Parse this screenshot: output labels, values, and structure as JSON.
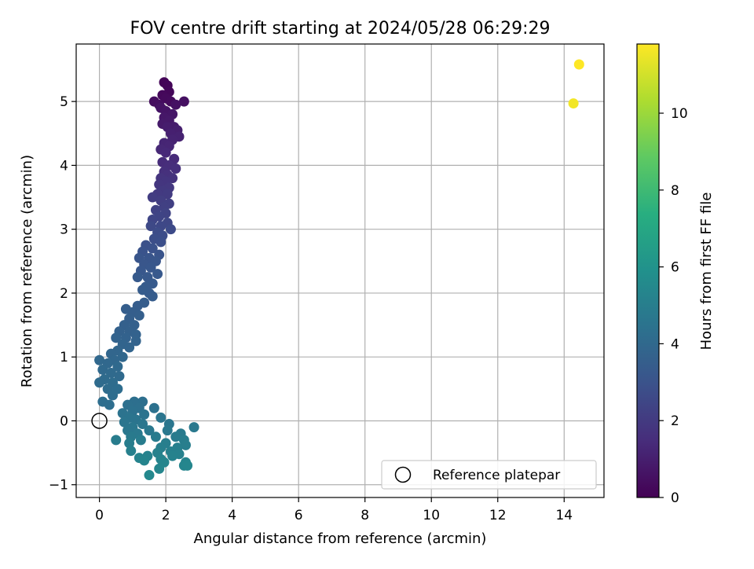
{
  "chart_data": {
    "type": "scatter",
    "title": "FOV centre drift starting at 2024/05/28 06:29:29",
    "xlabel": "Angular distance from reference (arcmin)",
    "ylabel": "Rotation from reference (arcmin)",
    "xlim": [
      -0.7,
      15.2
    ],
    "ylim": [
      -1.2,
      5.9
    ],
    "x_ticks": [
      "0",
      "2",
      "4",
      "6",
      "8",
      "10",
      "12",
      "14"
    ],
    "y_ticks": [
      "−1",
      "0",
      "1",
      "2",
      "3",
      "4",
      "5"
    ],
    "grid": true,
    "legend_position": "lower-right",
    "legend_label": "Reference platepar",
    "colorbar": {
      "label": "Hours from first FF file",
      "colormap": "viridis",
      "range": [
        0,
        11.8
      ],
      "ticks": [
        "0",
        "2",
        "4",
        "6",
        "8",
        "10"
      ]
    },
    "reference_point": {
      "x": 0,
      "y": 0
    },
    "points": [
      {
        "x": 1.95,
        "y": 5.3,
        "h": 0.1
      },
      {
        "x": 2.05,
        "y": 5.25,
        "h": 0.15
      },
      {
        "x": 2.1,
        "y": 5.15,
        "h": 0.2
      },
      {
        "x": 1.9,
        "y": 5.1,
        "h": 0.25
      },
      {
        "x": 2.0,
        "y": 5.05,
        "h": 0.3
      },
      {
        "x": 2.15,
        "y": 5.0,
        "h": 0.35
      },
      {
        "x": 1.65,
        "y": 5.0,
        "h": 0.4
      },
      {
        "x": 1.8,
        "y": 4.95,
        "h": 0.45
      },
      {
        "x": 2.55,
        "y": 5.0,
        "h": 0.5
      },
      {
        "x": 2.3,
        "y": 4.95,
        "h": 0.55
      },
      {
        "x": 1.85,
        "y": 4.9,
        "h": 0.6
      },
      {
        "x": 2.0,
        "y": 4.85,
        "h": 0.65
      },
      {
        "x": 2.2,
        "y": 4.8,
        "h": 0.7
      },
      {
        "x": 1.95,
        "y": 4.75,
        "h": 0.75
      },
      {
        "x": 2.1,
        "y": 4.7,
        "h": 0.8
      },
      {
        "x": 1.9,
        "y": 4.65,
        "h": 0.85
      },
      {
        "x": 2.25,
        "y": 4.6,
        "h": 0.9
      },
      {
        "x": 2.05,
        "y": 4.6,
        "h": 0.95
      },
      {
        "x": 2.35,
        "y": 4.55,
        "h": 1.0
      },
      {
        "x": 2.15,
        "y": 4.5,
        "h": 1.05
      },
      {
        "x": 2.4,
        "y": 4.45,
        "h": 1.1
      },
      {
        "x": 2.2,
        "y": 4.4,
        "h": 1.15
      },
      {
        "x": 1.95,
        "y": 4.35,
        "h": 1.2
      },
      {
        "x": 2.1,
        "y": 4.3,
        "h": 1.25
      },
      {
        "x": 1.85,
        "y": 4.25,
        "h": 1.3
      },
      {
        "x": 2.0,
        "y": 4.2,
        "h": 1.35
      },
      {
        "x": 2.25,
        "y": 4.1,
        "h": 1.4
      },
      {
        "x": 1.9,
        "y": 4.05,
        "h": 1.45
      },
      {
        "x": 2.1,
        "y": 4.0,
        "h": 1.5
      },
      {
        "x": 2.3,
        "y": 3.95,
        "h": 1.55
      },
      {
        "x": 1.95,
        "y": 3.9,
        "h": 1.6
      },
      {
        "x": 2.05,
        "y": 3.85,
        "h": 1.65
      },
      {
        "x": 2.2,
        "y": 3.8,
        "h": 1.7
      },
      {
        "x": 1.85,
        "y": 3.8,
        "h": 1.75
      },
      {
        "x": 2.0,
        "y": 3.75,
        "h": 1.8
      },
      {
        "x": 1.8,
        "y": 3.7,
        "h": 1.85
      },
      {
        "x": 2.1,
        "y": 3.65,
        "h": 1.9
      },
      {
        "x": 1.9,
        "y": 3.6,
        "h": 1.95
      },
      {
        "x": 1.75,
        "y": 3.55,
        "h": 2.0
      },
      {
        "x": 2.05,
        "y": 3.55,
        "h": 2.05
      },
      {
        "x": 1.6,
        "y": 3.5,
        "h": 2.1
      },
      {
        "x": 1.85,
        "y": 3.45,
        "h": 2.15
      },
      {
        "x": 2.1,
        "y": 3.4,
        "h": 2.2
      },
      {
        "x": 1.95,
        "y": 3.35,
        "h": 2.25
      },
      {
        "x": 1.7,
        "y": 3.3,
        "h": 2.3
      },
      {
        "x": 2.0,
        "y": 3.25,
        "h": 2.35
      },
      {
        "x": 1.8,
        "y": 3.2,
        "h": 2.4
      },
      {
        "x": 1.6,
        "y": 3.15,
        "h": 2.45
      },
      {
        "x": 2.05,
        "y": 3.1,
        "h": 2.5
      },
      {
        "x": 1.85,
        "y": 3.05,
        "h": 2.55
      },
      {
        "x": 1.55,
        "y": 3.05,
        "h": 2.6
      },
      {
        "x": 2.15,
        "y": 3.0,
        "h": 2.65
      },
      {
        "x": 1.75,
        "y": 2.95,
        "h": 2.7
      },
      {
        "x": 1.9,
        "y": 2.9,
        "h": 2.75
      },
      {
        "x": 1.65,
        "y": 2.85,
        "h": 2.8
      },
      {
        "x": 1.85,
        "y": 2.8,
        "h": 2.85
      },
      {
        "x": 1.4,
        "y": 2.75,
        "h": 2.9
      },
      {
        "x": 1.6,
        "y": 2.7,
        "h": 2.95
      },
      {
        "x": 1.3,
        "y": 2.65,
        "h": 3.0
      },
      {
        "x": 1.8,
        "y": 2.6,
        "h": 3.05
      },
      {
        "x": 1.5,
        "y": 2.55,
        "h": 3.1
      },
      {
        "x": 1.2,
        "y": 2.55,
        "h": 3.1
      },
      {
        "x": 1.7,
        "y": 2.5,
        "h": 3.15
      },
      {
        "x": 1.35,
        "y": 2.45,
        "h": 3.15
      },
      {
        "x": 1.55,
        "y": 2.4,
        "h": 3.2
      },
      {
        "x": 1.25,
        "y": 2.35,
        "h": 3.2
      },
      {
        "x": 1.75,
        "y": 2.3,
        "h": 3.25
      },
      {
        "x": 1.45,
        "y": 2.25,
        "h": 3.25
      },
      {
        "x": 1.15,
        "y": 2.25,
        "h": 3.3
      },
      {
        "x": 1.6,
        "y": 2.15,
        "h": 3.3
      },
      {
        "x": 1.4,
        "y": 2.1,
        "h": 3.35
      },
      {
        "x": 1.5,
        "y": 2.0,
        "h": 3.35
      },
      {
        "x": 1.3,
        "y": 2.05,
        "h": 3.4
      },
      {
        "x": 1.6,
        "y": 1.95,
        "h": 3.4
      },
      {
        "x": 1.35,
        "y": 1.85,
        "h": 3.45
      },
      {
        "x": 1.15,
        "y": 1.8,
        "h": 3.45
      },
      {
        "x": 1.0,
        "y": 1.7,
        "h": 3.5
      },
      {
        "x": 0.8,
        "y": 1.75,
        "h": 3.5
      },
      {
        "x": 1.2,
        "y": 1.65,
        "h": 3.55
      },
      {
        "x": 0.9,
        "y": 1.6,
        "h": 3.55
      },
      {
        "x": 0.75,
        "y": 1.5,
        "h": 3.6
      },
      {
        "x": 1.05,
        "y": 1.5,
        "h": 3.6
      },
      {
        "x": 0.9,
        "y": 1.4,
        "h": 3.65
      },
      {
        "x": 0.6,
        "y": 1.4,
        "h": 3.65
      },
      {
        "x": 1.1,
        "y": 1.35,
        "h": 3.7
      },
      {
        "x": 0.8,
        "y": 1.3,
        "h": 3.7
      },
      {
        "x": 0.5,
        "y": 1.3,
        "h": 3.75
      },
      {
        "x": 1.1,
        "y": 1.25,
        "h": 3.75
      },
      {
        "x": 0.7,
        "y": 1.2,
        "h": 3.8
      },
      {
        "x": 0.9,
        "y": 1.15,
        "h": 3.8
      },
      {
        "x": 0.55,
        "y": 1.1,
        "h": 3.85
      },
      {
        "x": 0.35,
        "y": 1.05,
        "h": 3.85
      },
      {
        "x": 0.7,
        "y": 1.0,
        "h": 3.9
      },
      {
        "x": 0.45,
        "y": 0.95,
        "h": 3.9
      },
      {
        "x": 0.0,
        "y": 0.95,
        "h": 3.95
      },
      {
        "x": 0.25,
        "y": 0.9,
        "h": 3.95
      },
      {
        "x": 0.55,
        "y": 0.85,
        "h": 4.0
      },
      {
        "x": 0.1,
        "y": 0.8,
        "h": 4.0
      },
      {
        "x": 0.35,
        "y": 0.75,
        "h": 4.05
      },
      {
        "x": 0.6,
        "y": 0.7,
        "h": 4.05
      },
      {
        "x": 0.15,
        "y": 0.65,
        "h": 4.1
      },
      {
        "x": 0.0,
        "y": 0.6,
        "h": 4.1
      },
      {
        "x": 0.4,
        "y": 0.6,
        "h": 4.15
      },
      {
        "x": 0.25,
        "y": 0.5,
        "h": 4.15
      },
      {
        "x": 0.55,
        "y": 0.5,
        "h": 4.2
      },
      {
        "x": 0.4,
        "y": 0.4,
        "h": 4.2
      },
      {
        "x": 0.1,
        "y": 0.3,
        "h": 4.25
      },
      {
        "x": 0.3,
        "y": 0.25,
        "h": 4.25
      },
      {
        "x": 1.3,
        "y": 0.3,
        "h": 4.3
      },
      {
        "x": 1.05,
        "y": 0.3,
        "h": 4.3
      },
      {
        "x": 0.85,
        "y": 0.25,
        "h": 4.35
      },
      {
        "x": 1.2,
        "y": 0.2,
        "h": 4.35
      },
      {
        "x": 1.65,
        "y": 0.2,
        "h": 4.4
      },
      {
        "x": 1.0,
        "y": 0.15,
        "h": 4.4
      },
      {
        "x": 0.7,
        "y": 0.12,
        "h": 4.45
      },
      {
        "x": 1.35,
        "y": 0.1,
        "h": 4.45
      },
      {
        "x": 0.9,
        "y": 0.05,
        "h": 4.5
      },
      {
        "x": 1.1,
        "y": 0.02,
        "h": 4.5
      },
      {
        "x": 1.85,
        "y": 0.05,
        "h": 4.55
      },
      {
        "x": 0.75,
        "y": -0.02,
        "h": 4.55
      },
      {
        "x": 1.3,
        "y": -0.05,
        "h": 4.6
      },
      {
        "x": 2.1,
        "y": -0.05,
        "h": 4.6
      },
      {
        "x": 1.0,
        "y": -0.1,
        "h": 4.65
      },
      {
        "x": 0.85,
        "y": -0.15,
        "h": 4.65
      },
      {
        "x": 1.5,
        "y": -0.15,
        "h": 4.7
      },
      {
        "x": 2.05,
        "y": -0.15,
        "h": 4.7
      },
      {
        "x": 2.85,
        "y": -0.1,
        "h": 4.75
      },
      {
        "x": 1.15,
        "y": -0.2,
        "h": 4.75
      },
      {
        "x": 2.45,
        "y": -0.2,
        "h": 4.8
      },
      {
        "x": 0.95,
        "y": -0.25,
        "h": 4.8
      },
      {
        "x": 1.7,
        "y": -0.25,
        "h": 4.85
      },
      {
        "x": 2.3,
        "y": -0.25,
        "h": 4.85
      },
      {
        "x": 0.5,
        "y": -0.3,
        "h": 4.9
      },
      {
        "x": 1.25,
        "y": -0.3,
        "h": 4.9
      },
      {
        "x": 2.55,
        "y": -0.3,
        "h": 4.95
      },
      {
        "x": 0.9,
        "y": -0.35,
        "h": 4.95
      },
      {
        "x": 2.0,
        "y": -0.35,
        "h": 5.0
      },
      {
        "x": 2.6,
        "y": -0.38,
        "h": 5.0
      },
      {
        "x": 1.85,
        "y": -0.42,
        "h": 5.05
      },
      {
        "x": 2.35,
        "y": -0.42,
        "h": 5.05
      },
      {
        "x": 0.95,
        "y": -0.47,
        "h": 5.1
      },
      {
        "x": 2.15,
        "y": -0.48,
        "h": 5.1
      },
      {
        "x": 1.75,
        "y": -0.5,
        "h": 5.15
      },
      {
        "x": 2.4,
        "y": -0.52,
        "h": 5.15
      },
      {
        "x": 2.2,
        "y": -0.55,
        "h": 5.2
      },
      {
        "x": 1.45,
        "y": -0.55,
        "h": 5.2
      },
      {
        "x": 1.2,
        "y": -0.58,
        "h": 5.25
      },
      {
        "x": 1.85,
        "y": -0.6,
        "h": 5.25
      },
      {
        "x": 1.35,
        "y": -0.62,
        "h": 5.3
      },
      {
        "x": 2.6,
        "y": -0.65,
        "h": 5.3
      },
      {
        "x": 1.95,
        "y": -0.65,
        "h": 5.35
      },
      {
        "x": 2.55,
        "y": -0.7,
        "h": 5.35
      },
      {
        "x": 2.65,
        "y": -0.7,
        "h": 5.4
      },
      {
        "x": 1.8,
        "y": -0.75,
        "h": 5.4
      },
      {
        "x": 1.5,
        "y": -0.85,
        "h": 5.45
      },
      {
        "x": 14.28,
        "y": 4.97,
        "h": 11.6
      },
      {
        "x": 14.45,
        "y": 5.58,
        "h": 11.8
      }
    ]
  }
}
